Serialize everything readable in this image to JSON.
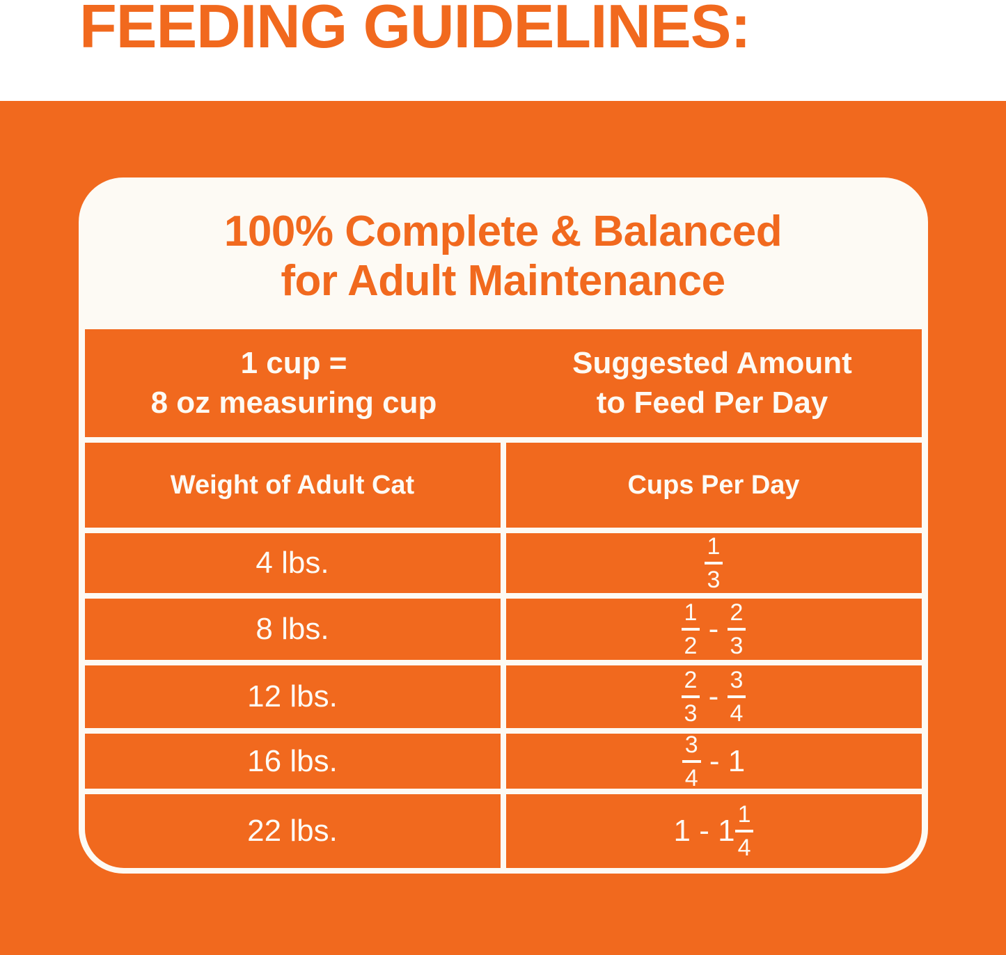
{
  "page_title": "FEEDING GUIDELINES:",
  "colors": {
    "orange": "#F1691E",
    "cream": "#FDFAF4"
  },
  "card": {
    "heading_line1": "100% Complete & Balanced",
    "heading_line2": "for Adult Maintenance",
    "header_band": {
      "left_line1": "1 cup =",
      "left_line2": "8 oz measuring cup",
      "right_line1": "Suggested Amount",
      "right_line2": "to Feed Per Day"
    },
    "table": {
      "columns": [
        "Weight of Adult Cat",
        "Cups Per Day"
      ],
      "rows": [
        {
          "weight": "4 lbs.",
          "cups": [
            {
              "frac": [
                "1",
                "3"
              ]
            }
          ]
        },
        {
          "weight": "8 lbs.",
          "cups": [
            {
              "frac": [
                "1",
                "2"
              ]
            },
            {
              "text": " - "
            },
            {
              "frac": [
                "2",
                "3"
              ]
            }
          ]
        },
        {
          "weight": "12 lbs.",
          "cups": [
            {
              "frac": [
                "2",
                "3"
              ]
            },
            {
              "text": " - "
            },
            {
              "frac": [
                "3",
                "4"
              ]
            }
          ]
        },
        {
          "weight": "16 lbs.",
          "cups": [
            {
              "frac": [
                "3",
                "4"
              ]
            },
            {
              "text": " - 1"
            }
          ]
        },
        {
          "weight": "22 lbs.",
          "cups": [
            {
              "text": "1 - 1"
            },
            {
              "frac": [
                "1",
                "4"
              ]
            }
          ]
        }
      ]
    }
  }
}
